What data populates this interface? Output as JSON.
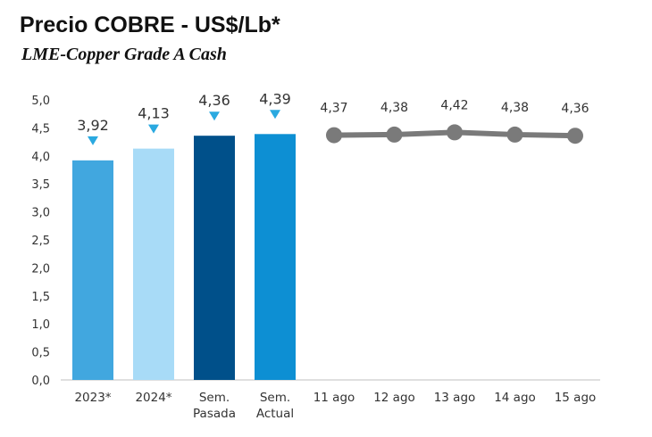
{
  "chart_data": {
    "type": "bar",
    "title": "Precio COBRE - US$/Lb*",
    "subtitle": "LME-Copper Grade A Cash",
    "ylim": [
      0,
      5
    ],
    "yticks": [
      "0,0",
      "0,5",
      "1,0",
      "1,5",
      "2,0",
      "2,5",
      "3,0",
      "3,5",
      "4,0",
      "4,5",
      "5,0"
    ],
    "grid": false,
    "legend": "none",
    "bars": {
      "categories": [
        [
          "2023*"
        ],
        [
          "2024*"
        ],
        [
          "Sem.",
          "Pasada"
        ],
        [
          "Sem.",
          "Actual"
        ]
      ],
      "values": [
        3.92,
        4.13,
        4.36,
        4.39
      ],
      "labels": [
        "3,92",
        "4,13",
        "4,36",
        "4,39"
      ],
      "colors": [
        "#41a7df",
        "#a8dbf7",
        "#00508a",
        "#0d8fd3"
      ],
      "marker_color": "#2aa9e0"
    },
    "line": {
      "type": "line",
      "categories": [
        "11 ago",
        "12 ago",
        "13 ago",
        "14 ago",
        "15 ago"
      ],
      "values": [
        4.37,
        4.38,
        4.42,
        4.38,
        4.36
      ],
      "labels": [
        "4,37",
        "4,38",
        "4,42",
        "4,38",
        "4,36"
      ],
      "color": "#7a7a7a"
    }
  }
}
